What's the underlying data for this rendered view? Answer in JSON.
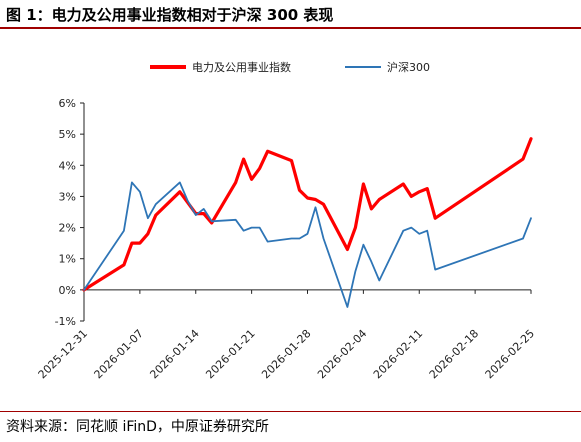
{
  "figure_title": "图 1：电力及公用事业指数相对于沪深 300 表现",
  "source_note": "资料来源：同花顺 iFinD，中原证券研究所",
  "chart_data": {
    "type": "line",
    "title": "",
    "xlabel": "",
    "ylabel": "",
    "ylim": [
      -0.01,
      0.06
    ],
    "xlim": [
      "2025-12-31",
      "2026-02-25"
    ],
    "y_ticks": [
      -0.01,
      0,
      0.01,
      0.02,
      0.03,
      0.04,
      0.05,
      0.06
    ],
    "y_tick_labels": [
      "-1%",
      "0%",
      "1%",
      "2%",
      "3%",
      "4%",
      "5%",
      "6%"
    ],
    "x_ticks": [
      "2025-12-31",
      "2026-01-07",
      "2026-01-14",
      "2026-01-21",
      "2026-01-28",
      "2026-02-04",
      "2026-02-11",
      "2026-02-18",
      "2026-02-25"
    ],
    "x_tick_labels": [
      "2025-12-31",
      "2026-01-07",
      "2026-01-14",
      "2026-01-21",
      "2026-01-28",
      "2026-02-04",
      "2026-02-11",
      "2026-02-18",
      "2026-02-25"
    ],
    "grid": false,
    "legend_position": "top",
    "series": [
      {
        "name": "电力及公用事业指数",
        "color": "#ff0000",
        "x": [
          "2025-12-31",
          "2026-01-05",
          "2026-01-06",
          "2026-01-07",
          "2026-01-08",
          "2026-01-09",
          "2026-01-12",
          "2026-01-13",
          "2026-01-14",
          "2026-01-15",
          "2026-01-16",
          "2026-01-19",
          "2026-01-20",
          "2026-01-21",
          "2026-01-22",
          "2026-01-23",
          "2026-01-26",
          "2026-01-27",
          "2026-01-28",
          "2026-01-29",
          "2026-01-30",
          "2026-02-02",
          "2026-02-03",
          "2026-02-04",
          "2026-02-05",
          "2026-02-06",
          "2026-02-09",
          "2026-02-10",
          "2026-02-11",
          "2026-02-12",
          "2026-02-13",
          "2026-02-24",
          "2026-02-25"
        ],
        "values": [
          0.0,
          0.008,
          0.015,
          0.015,
          0.018,
          0.024,
          0.0315,
          0.028,
          0.0245,
          0.0245,
          0.0215,
          0.0345,
          0.042,
          0.0355,
          0.039,
          0.0445,
          0.0415,
          0.032,
          0.0295,
          0.029,
          0.0275,
          0.013,
          0.02,
          0.034,
          0.026,
          0.029,
          0.034,
          0.03,
          0.0315,
          0.0325,
          0.023,
          0.042,
          0.0485
        ]
      },
      {
        "name": "沪深300",
        "color": "#2e75b6",
        "x": [
          "2025-12-31",
          "2026-01-05",
          "2026-01-06",
          "2026-01-07",
          "2026-01-08",
          "2026-01-09",
          "2026-01-12",
          "2026-01-13",
          "2026-01-14",
          "2026-01-15",
          "2026-01-16",
          "2026-01-19",
          "2026-01-20",
          "2026-01-21",
          "2026-01-22",
          "2026-01-23",
          "2026-01-26",
          "2026-01-27",
          "2026-01-28",
          "2026-01-29",
          "2026-01-30",
          "2026-02-02",
          "2026-02-03",
          "2026-02-04",
          "2026-02-05",
          "2026-02-06",
          "2026-02-09",
          "2026-02-10",
          "2026-02-11",
          "2026-02-12",
          "2026-02-13",
          "2026-02-24",
          "2026-02-25"
        ],
        "values": [
          0.0,
          0.019,
          0.0345,
          0.0315,
          0.023,
          0.0275,
          0.0345,
          0.0285,
          0.024,
          0.026,
          0.022,
          0.0225,
          0.019,
          0.02,
          0.02,
          0.0155,
          0.0165,
          0.0165,
          0.018,
          0.0265,
          0.0165,
          -0.0055,
          0.006,
          0.0145,
          0.009,
          0.003,
          0.019,
          0.02,
          0.018,
          0.019,
          0.0065,
          0.0165,
          0.023
        ]
      }
    ]
  }
}
